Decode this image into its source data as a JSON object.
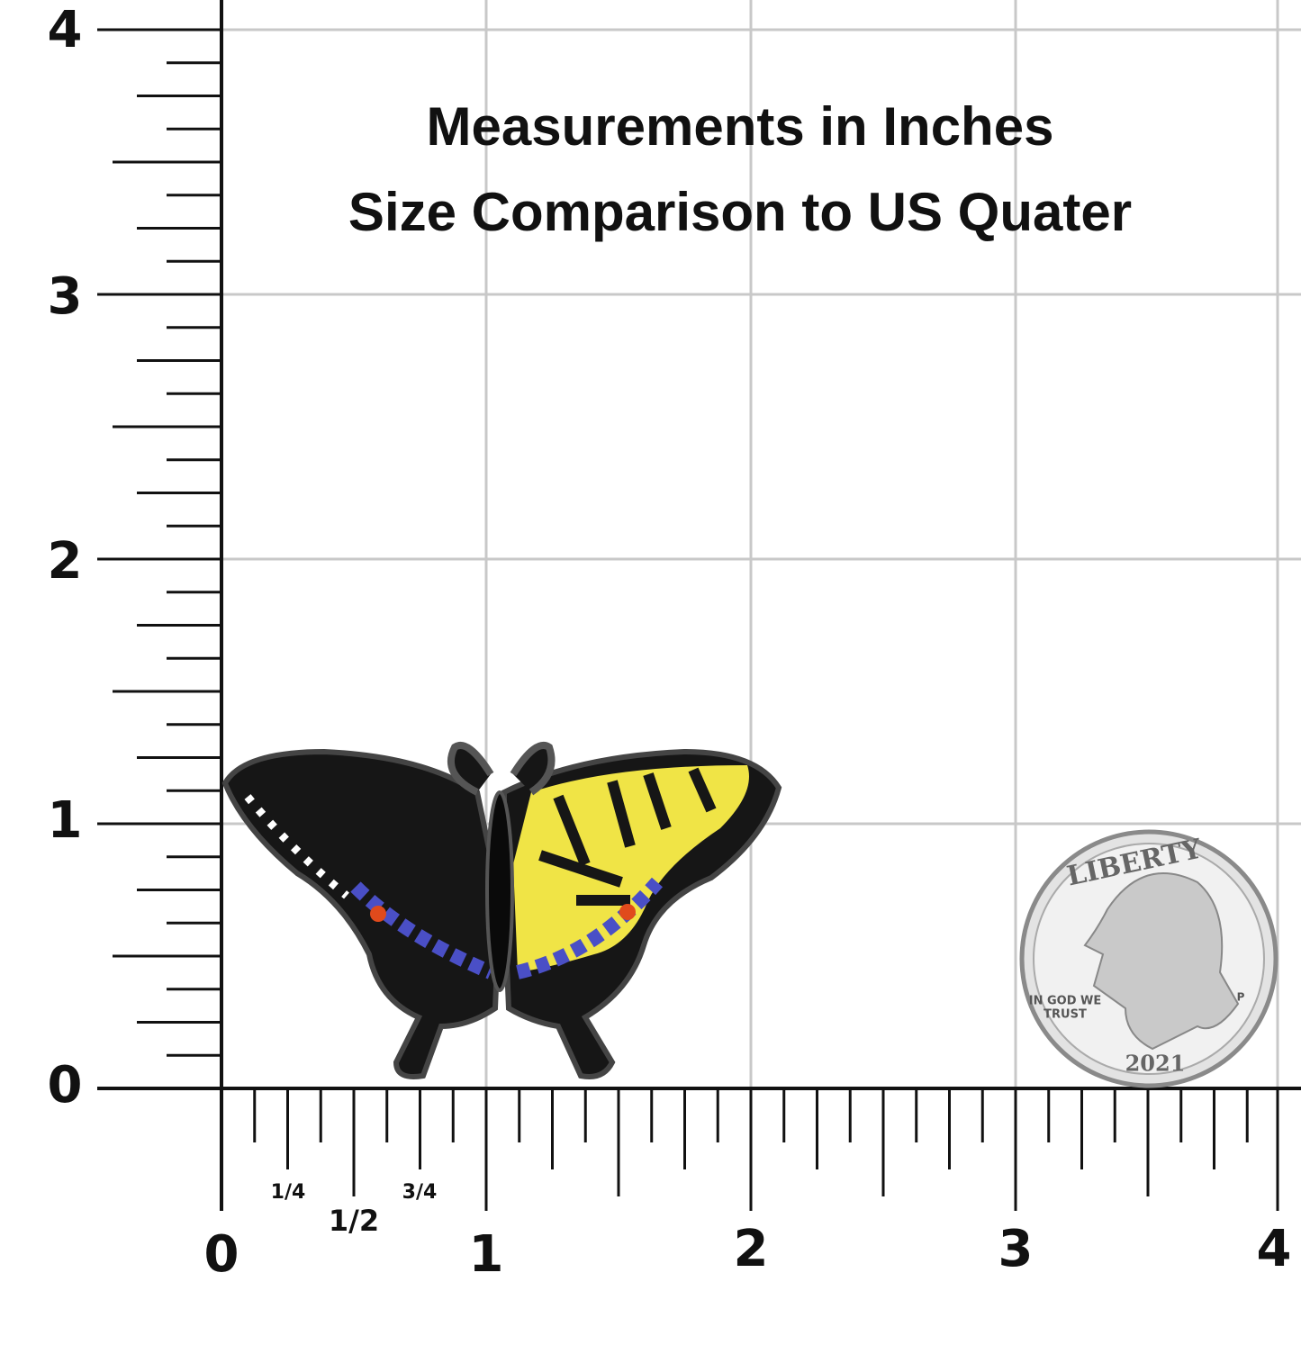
{
  "header": {
    "title": [
      "Measurements in Inches",
      "Size Comparison to US Quater"
    ]
  },
  "y_ruler": {
    "labels": [
      "0",
      "1",
      "2",
      "3",
      "4"
    ]
  },
  "x_ruler": {
    "labels": [
      "0",
      "1",
      "2",
      "3",
      "4"
    ],
    "fraction_labels": [
      "1/4",
      "1/2",
      "3/4"
    ]
  },
  "coin": {
    "top_text": "LIBERTY",
    "motto": [
      "IN GOD WE",
      "TRUST"
    ],
    "mint_mark": "P",
    "year": "2021"
  }
}
